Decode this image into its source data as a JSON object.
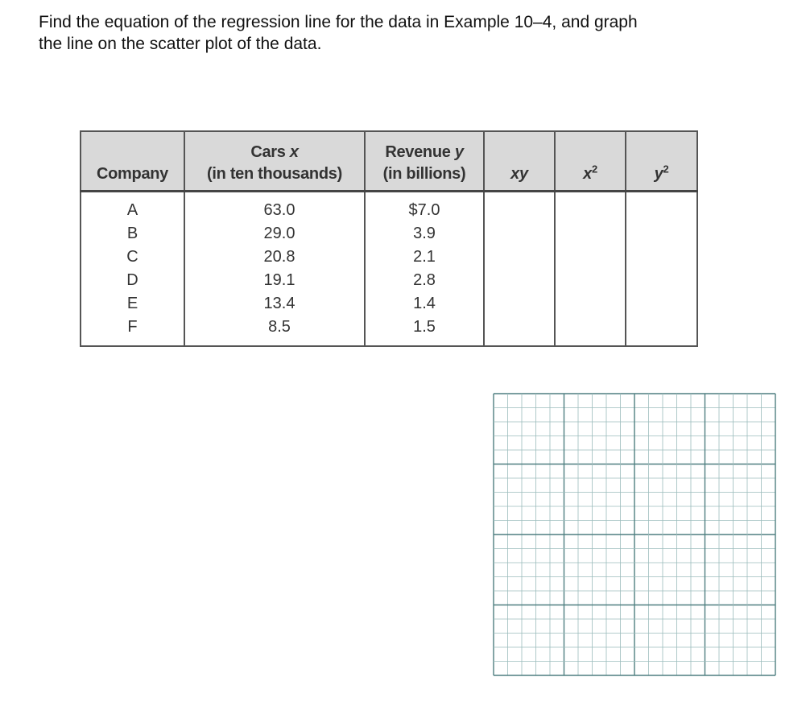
{
  "prompt": {
    "line1": "Find the equation of the regression line for the data in Example 10–4, and graph",
    "line2": "the line on the scatter plot of the data."
  },
  "table": {
    "headers": {
      "company": "Company",
      "cars_line1": "Cars ",
      "cars_var": "x",
      "cars_line2": "(in ten thousands)",
      "revenue_line1": "Revenue ",
      "revenue_var": "y",
      "revenue_line2": "(in billions)",
      "xy": "xy",
      "x2_base": "x",
      "x2_exp": "2",
      "y2_base": "y",
      "y2_exp": "2"
    },
    "companies": [
      "A",
      "B",
      "C",
      "D",
      "E",
      "F"
    ],
    "cars": [
      "63.0",
      "29.0",
      "20.8",
      "19.1",
      "13.4",
      "8.5"
    ],
    "revenue": [
      "$7.0",
      "3.9",
      "2.1",
      "2.8",
      "1.4",
      "1.5"
    ]
  },
  "graph_paper": {
    "major_divisions": 4,
    "minor_per_major": 5,
    "major_color": "#4f7f80",
    "minor_color": "#9bbcbc"
  },
  "colors": {
    "header_bg": "#d9d9d9",
    "border": "#555555"
  }
}
